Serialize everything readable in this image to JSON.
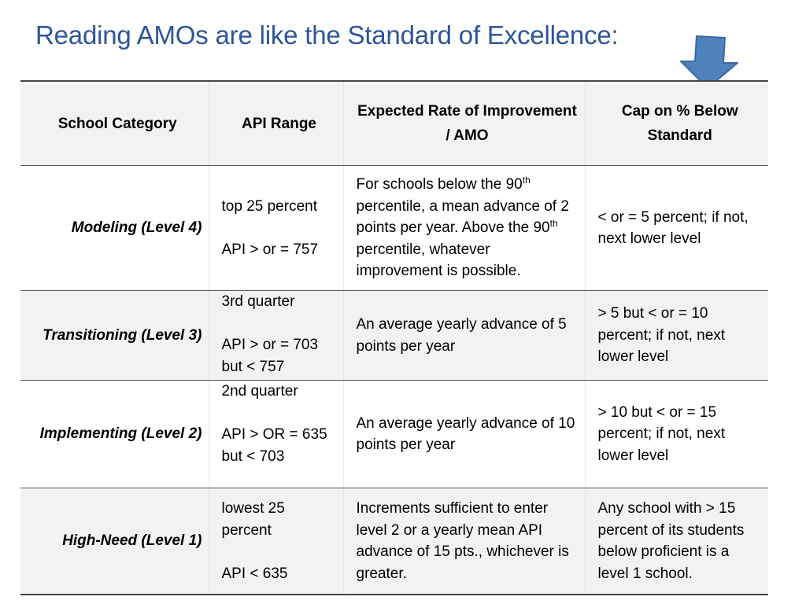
{
  "slide": {
    "title": "Reading AMOs are like the Standard of Excellence:",
    "arrow_icon": "down-arrow-icon",
    "arrow_color": "#4f81bd",
    "title_color": "#2e5597"
  },
  "table": {
    "headers": {
      "category": "School Category",
      "api": "API Range",
      "rate": "Expected Rate of Improvement / AMO",
      "cap": "Cap on % Below Standard"
    },
    "rows": [
      {
        "category": "Modeling (Level 4)",
        "api_line1": "top  25 percent",
        "api_line2": "API > or = 757",
        "api_line3": "",
        "rate_a": "For schools below the 90",
        "rate_sup1": "th",
        "rate_b": " percentile, a mean advance of 2 points per year.  Above the 90",
        "rate_sup2": "th",
        "rate_c": " percentile, whatever improvement is possible.",
        "cap": "< or =  5 percent; if not, next lower level"
      },
      {
        "category": "Transitioning (Level 3)",
        "api_line1": "3rd  quarter",
        "api_line2": "API > or = 703",
        "api_line3": "but < 757",
        "rate": "An average yearly advance of 5 points per year",
        "cap": "> 5 but < or = 10 percent; if not, next lower level"
      },
      {
        "category": "Implementing (Level 2)",
        "api_line1": "2nd  quarter",
        "api_line2": "API > OR = 635",
        "api_line3": "but < 703",
        "rate": "An average yearly advance of 10 points per year",
        "cap": "> 10 but < or = 15 percent; if not, next lower level"
      },
      {
        "category": "High-Need (Level 1)",
        "api_line1": "lowest  25 percent",
        "api_line2": "API < 635",
        "api_line3": "",
        "rate": "Increments sufficient to enter level 2 or a yearly mean API advance of 15 pts., whichever is greater.",
        "cap": "Any school with > 15 percent of its students below proficient is a level 1 school."
      }
    ]
  }
}
